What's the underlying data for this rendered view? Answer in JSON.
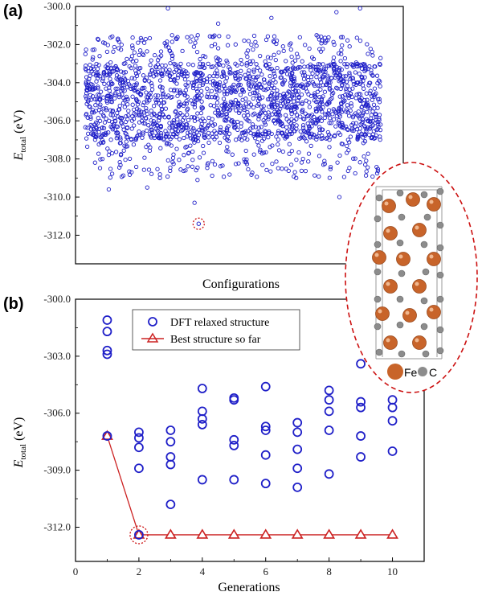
{
  "colors": {
    "dft": "#1f1fc8",
    "best": "#cc2222",
    "highlight": "#cc1111",
    "fe": "#c8642a",
    "c": "#8c8c8c"
  },
  "inset": {
    "fe_label": "Fe",
    "c_label": "C"
  },
  "chart_data": [
    {
      "panel": "(a)",
      "type": "scatter",
      "xlabel": "Configurations",
      "ylabel": "E",
      "ylabel_sub": "total",
      "ylabel_unit": "(eV)",
      "ylim": [
        -313.5,
        -300.0
      ],
      "yticks": [
        "-300.0",
        "-302.0",
        "-304.0",
        "-306.0",
        "-308.0",
        "-310.0",
        "-312.0"
      ],
      "ytick_values": [
        -300,
        -302,
        -304,
        -306,
        -308,
        -310,
        -312
      ],
      "xticks": [],
      "n_configurations": 2000,
      "band": {
        "core_min": -307.0,
        "core_max": -303.0,
        "sparse_min": -309.0,
        "sparse_max": -301.5
      },
      "outliers": [
        {
          "x": 0.08,
          "y": -309.6
        },
        {
          "x": 0.21,
          "y": -309.5
        },
        {
          "x": 0.37,
          "y": -310.3
        },
        {
          "x": 0.38,
          "y": -309.1
        },
        {
          "x": 0.86,
          "y": -310.0
        },
        {
          "x": 0.28,
          "y": -300.1
        },
        {
          "x": 0.85,
          "y": -300.3
        },
        {
          "x": 0.93,
          "y": -300.1
        },
        {
          "x": 0.45,
          "y": -300.9
        },
        {
          "x": 0.63,
          "y": -300.6
        }
      ],
      "minimum": {
        "x": 0.384,
        "y": -311.4
      }
    },
    {
      "panel": "(b)",
      "type": "scatter",
      "xlabel": "Generations",
      "ylabel": "E",
      "ylabel_sub": "total",
      "ylabel_unit": "(eV)",
      "xlim": [
        0,
        11
      ],
      "ylim": [
        -313.8,
        -300.0
      ],
      "xticks": [
        "0",
        "2",
        "4",
        "6",
        "8",
        "10"
      ],
      "xtick_values": [
        0,
        2,
        4,
        6,
        8,
        10
      ],
      "yticks": [
        "-300.0",
        "-303.0",
        "-306.0",
        "-309.0",
        "-312.0"
      ],
      "ytick_values": [
        -300,
        -303,
        -306,
        -309,
        -312
      ],
      "legend": [
        "DFT relaxed structure",
        "Best structure so far"
      ],
      "legend_position": "top-left",
      "series": [
        {
          "name": "DFT relaxed structure",
          "points": [
            [
              1,
              -301.1
            ],
            [
              1,
              -301.7
            ],
            [
              1,
              -302.7
            ],
            [
              1,
              -302.9
            ],
            [
              1,
              -307.2
            ],
            [
              2,
              -307.0
            ],
            [
              2,
              -307.3
            ],
            [
              2,
              -307.8
            ],
            [
              2,
              -308.9
            ],
            [
              2,
              -312.4
            ],
            [
              3,
              -306.9
            ],
            [
              3,
              -307.5
            ],
            [
              3,
              -308.3
            ],
            [
              3,
              -308.7
            ],
            [
              3,
              -310.8
            ],
            [
              4,
              -304.7
            ],
            [
              4,
              -305.9
            ],
            [
              4,
              -306.3
            ],
            [
              4,
              -306.6
            ],
            [
              4,
              -309.5
            ],
            [
              5,
              -305.2
            ],
            [
              5,
              -305.3
            ],
            [
              5,
              -307.4
            ],
            [
              5,
              -307.7
            ],
            [
              5,
              -309.5
            ],
            [
              6,
              -304.6
            ],
            [
              6,
              -306.7
            ],
            [
              6,
              -306.9
            ],
            [
              6,
              -308.2
            ],
            [
              6,
              -309.7
            ],
            [
              7,
              -306.5
            ],
            [
              7,
              -307.0
            ],
            [
              7,
              -307.9
            ],
            [
              7,
              -308.9
            ],
            [
              7,
              -309.9
            ],
            [
              8,
              -304.8
            ],
            [
              8,
              -305.3
            ],
            [
              8,
              -305.9
            ],
            [
              8,
              -306.9
            ],
            [
              8,
              -309.2
            ],
            [
              9,
              -303.4
            ],
            [
              9,
              -305.4
            ],
            [
              9,
              -305.7
            ],
            [
              9,
              -307.2
            ],
            [
              9,
              -308.3
            ],
            [
              10,
              -305.3
            ],
            [
              10,
              -305.7
            ],
            [
              10,
              -306.4
            ],
            [
              10,
              -308.0
            ]
          ]
        },
        {
          "name": "Best structure so far",
          "x": [
            1,
            2,
            3,
            4,
            5,
            6,
            7,
            8,
            9,
            10
          ],
          "y": [
            -307.2,
            -312.4,
            -312.4,
            -312.4,
            -312.4,
            -312.4,
            -312.4,
            -312.4,
            -312.4,
            -312.4
          ]
        }
      ],
      "highlight_point": {
        "x": 2,
        "y": -312.4
      }
    }
  ]
}
